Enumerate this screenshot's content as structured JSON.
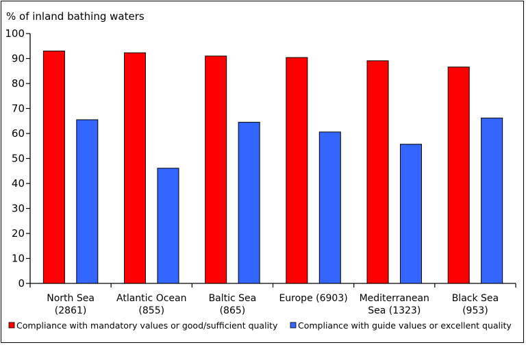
{
  "chart_data": {
    "type": "bar",
    "title": "",
    "ylabel": "% of inland bathing waters",
    "xlabel": "",
    "ylim": [
      0,
      100
    ],
    "yticks": [
      0,
      10,
      20,
      30,
      40,
      50,
      60,
      70,
      80,
      90,
      100
    ],
    "grid": false,
    "legend_position": "bottom",
    "categories": [
      [
        "North Sea",
        "(2861)"
      ],
      [
        "Atlantic Ocean",
        "(855)"
      ],
      [
        "Baltic Sea",
        "(865)"
      ],
      [
        "Europe (6903)"
      ],
      [
        "Mediterranean",
        "Sea (1323)"
      ],
      [
        "Black Sea",
        "(953)"
      ]
    ],
    "series": [
      {
        "name": "Compliance with mandatory values or good/sufficient quality",
        "color": "#ff0000",
        "values": [
          93,
          92.3,
          91,
          90.4,
          89.1,
          86.6
        ]
      },
      {
        "name": "Compliance with guide values or excellent quality",
        "color": "#3366ff",
        "values": [
          65.5,
          46.1,
          64.5,
          60.6,
          55.7,
          66.2
        ]
      }
    ]
  }
}
